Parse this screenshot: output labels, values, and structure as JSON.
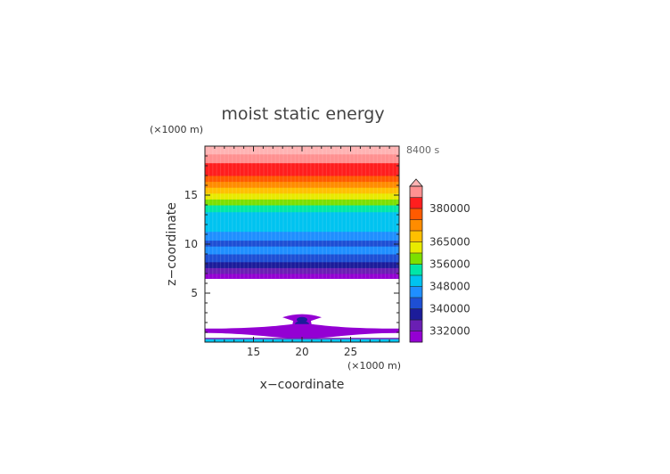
{
  "chart_data": {
    "type": "heatmap",
    "title": "moist static energy",
    "xlabel": "x−coordinate",
    "ylabel": "z−coordinate",
    "x_unit": "(×1000 m)",
    "y_unit": "(×1000 m)",
    "time_label": "8400 s",
    "xlim": [
      10,
      30
    ],
    "ylim": [
      0,
      20
    ],
    "x_ticks": [
      15,
      20,
      25
    ],
    "y_ticks": [
      5,
      10,
      15
    ],
    "colorbar": {
      "tick_labels": [
        "380000",
        "365000",
        "356000",
        "348000",
        "340000",
        "332000"
      ],
      "tick_levels": [
        12,
        9,
        7,
        5,
        3,
        1
      ],
      "levels": 14,
      "extend": "max",
      "colors": [
        "#9400d3",
        "#6a1fb3",
        "#1c1c9a",
        "#1e4fd4",
        "#1f8fff",
        "#00c3f0",
        "#00e6a8",
        "#7ce000",
        "#e8ea00",
        "#ffc000",
        "#ff8c00",
        "#ff5a00",
        "#ff1e1e",
        "#ff9090",
        "#ffb3b3"
      ]
    },
    "bands": [
      {
        "z0": 6.5,
        "z1": 7.0,
        "level": 0
      },
      {
        "z0": 7.0,
        "z1": 7.6,
        "level": 1
      },
      {
        "z0": 7.6,
        "z1": 8.2,
        "level": 2
      },
      {
        "z0": 8.2,
        "z1": 9.0,
        "level": 3
      },
      {
        "z0": 9.0,
        "z1": 9.8,
        "level": 4
      },
      {
        "z0": 9.8,
        "z1": 10.4,
        "level": 3
      },
      {
        "z0": 10.4,
        "z1": 11.3,
        "level": 4
      },
      {
        "z0": 11.3,
        "z1": 12.3,
        "level": 5
      },
      {
        "z0": 12.3,
        "z1": 13.3,
        "level": 5
      },
      {
        "z0": 13.3,
        "z1": 14.0,
        "level": 6
      },
      {
        "z0": 14.0,
        "z1": 14.6,
        "level": 7
      },
      {
        "z0": 14.6,
        "z1": 15.2,
        "level": 8
      },
      {
        "z0": 15.2,
        "z1": 15.8,
        "level": 9
      },
      {
        "z0": 15.8,
        "z1": 16.4,
        "level": 10
      },
      {
        "z0": 16.4,
        "z1": 17.0,
        "level": 11
      },
      {
        "z0": 17.0,
        "z1": 18.3,
        "level": 12
      },
      {
        "z0": 18.3,
        "z1": 19.2,
        "level": 13
      },
      {
        "z0": 19.2,
        "z1": 20.0,
        "level": 14
      }
    ],
    "lower_features": [
      {
        "kind": "plume",
        "x_center": 20,
        "z_top": 2.9,
        "z_bottom": 0.3,
        "level": 0
      },
      {
        "kind": "cloud_layer",
        "x0": 10,
        "x1": 30,
        "z_center": 1.2,
        "level": 0
      },
      {
        "kind": "surface_layer",
        "x0": 10,
        "x1": 30,
        "z0": 0.0,
        "z1": 0.3,
        "level": 5
      }
    ]
  }
}
